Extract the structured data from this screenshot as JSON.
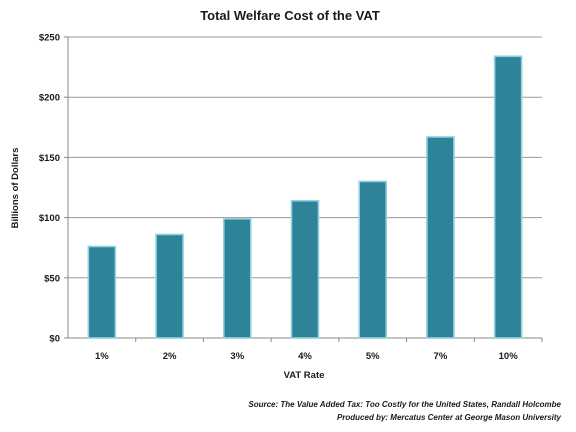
{
  "chart_data": {
    "type": "bar",
    "title": "Total Welfare Cost of the VAT",
    "xlabel": "VAT Rate",
    "ylabel": "Billions of Dollars",
    "categories": [
      "1%",
      "2%",
      "3%",
      "4%",
      "5%",
      "7%",
      "10%"
    ],
    "values": [
      76,
      86,
      99,
      114,
      130,
      167,
      234
    ],
    "ylim": [
      0,
      250
    ],
    "yticks": [
      0,
      50,
      100,
      150,
      200,
      250
    ],
    "ytick_labels": [
      "$0",
      "$50",
      "$100",
      "$150",
      "$200",
      "$250"
    ],
    "grid": true,
    "legend": "none",
    "colors": {
      "bar_fill": "#2e8399",
      "bar_edge": "#8fd3df",
      "gridline": "#9a9a9a",
      "axis": "#8a8a8a"
    }
  },
  "source": {
    "line1": "Source: The Value Added Tax: Too Costly for the United States, Randall Holcombe",
    "line2": "Produced by: Mercatus Center at George Mason University"
  }
}
